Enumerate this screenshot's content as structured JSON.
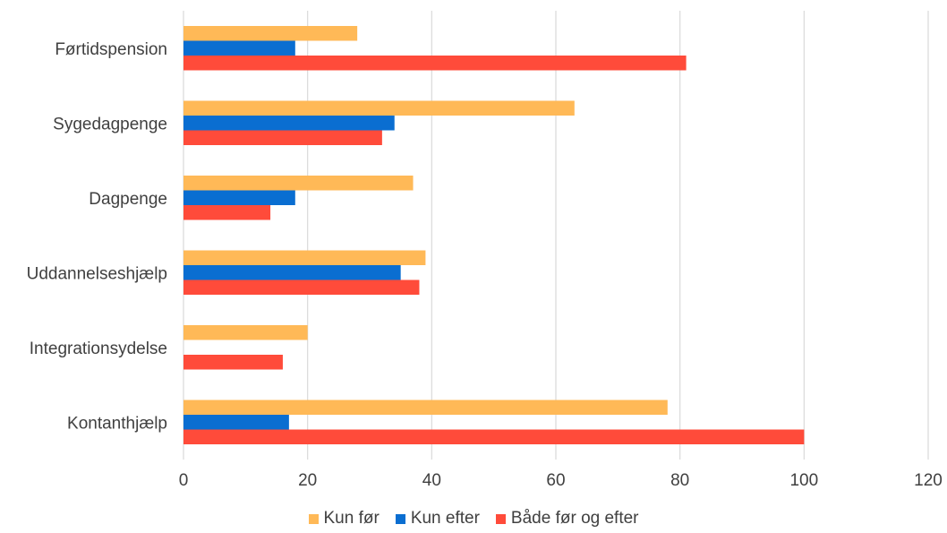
{
  "chart_data": {
    "type": "bar",
    "orientation": "horizontal",
    "categories": [
      "Førtidspension",
      "Sygedagpenge",
      "Dagpenge",
      "Uddannelseshjælp",
      "Integrationsydelse",
      "Kontanthjælp"
    ],
    "series": [
      {
        "name": "Kun før",
        "color": "#FFB957",
        "values": [
          28,
          63,
          37,
          39,
          20,
          78
        ]
      },
      {
        "name": "Kun efter",
        "color": "#0A6ED1",
        "values": [
          18,
          34,
          18,
          35,
          0,
          17
        ]
      },
      {
        "name": "Både før og efter",
        "color": "#FF4B3A",
        "values": [
          81,
          32,
          14,
          38,
          16,
          100
        ]
      }
    ],
    "xlim": [
      0,
      120
    ],
    "x_ticks": [
      0,
      20,
      40,
      60,
      80,
      100,
      120
    ],
    "grid": true,
    "legend_position": "bottom",
    "title": "",
    "xlabel": "",
    "ylabel": ""
  }
}
